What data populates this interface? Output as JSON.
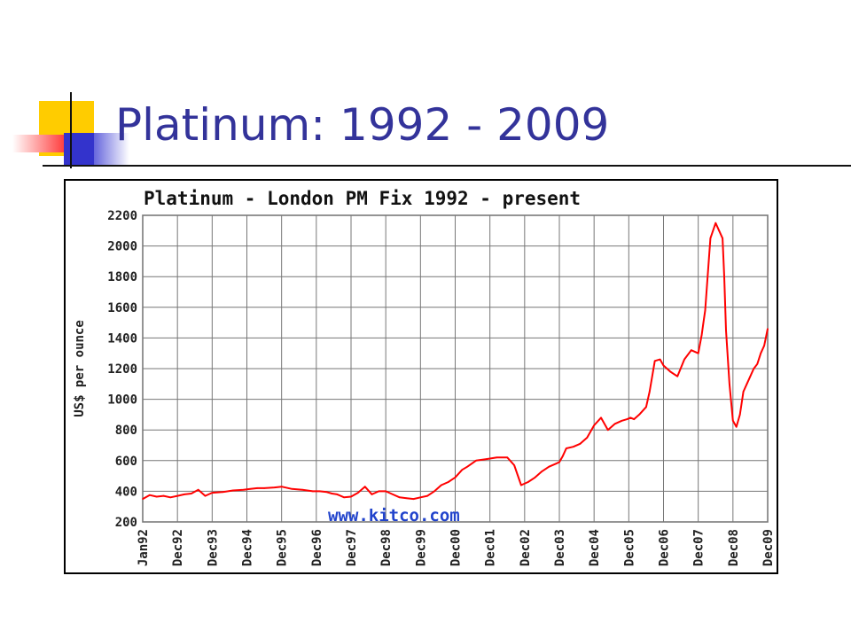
{
  "slide": {
    "title": "Platinum: 1992 - 2009"
  },
  "chart_data": {
    "type": "line",
    "title": "Platinum - London PM Fix 1992 - present",
    "ylabel": "US$ per ounce",
    "xlabel": "",
    "watermark": "www.kitco.com",
    "ylim": [
      200,
      2200
    ],
    "yticks": [
      200,
      400,
      600,
      800,
      1000,
      1200,
      1400,
      1600,
      1800,
      2000,
      2200
    ],
    "xlim": [
      1992.0,
      2010.0
    ],
    "xticks": [
      {
        "label": "Jan92",
        "x": 1992.0
      },
      {
        "label": "Dec92",
        "x": 1993.0
      },
      {
        "label": "Dec93",
        "x": 1994.0
      },
      {
        "label": "Dec94",
        "x": 1995.0
      },
      {
        "label": "Dec95",
        "x": 1996.0
      },
      {
        "label": "Dec96",
        "x": 1997.0
      },
      {
        "label": "Dec97",
        "x": 1998.0
      },
      {
        "label": "Dec98",
        "x": 1999.0
      },
      {
        "label": "Dec99",
        "x": 2000.0
      },
      {
        "label": "Dec00",
        "x": 2001.0
      },
      {
        "label": "Dec01",
        "x": 2002.0
      },
      {
        "label": "Dec02",
        "x": 2003.0
      },
      {
        "label": "Dec03",
        "x": 2004.0
      },
      {
        "label": "Dec04",
        "x": 2005.0
      },
      {
        "label": "Dec05",
        "x": 2006.0
      },
      {
        "label": "Dec06",
        "x": 2007.0
      },
      {
        "label": "Dec07",
        "x": 2008.0
      },
      {
        "label": "Dec08",
        "x": 2009.0
      },
      {
        "label": "Dec09",
        "x": 2010.0
      }
    ],
    "grid": true,
    "color": "#ff0000",
    "series": [
      {
        "name": "",
        "x": [
          1992.0,
          1992.2,
          1992.4,
          1992.6,
          1992.8,
          1993.0,
          1993.2,
          1993.4,
          1993.6,
          1993.8,
          1994.0,
          1994.3,
          1994.6,
          1994.9,
          1995.1,
          1995.3,
          1995.5,
          1995.8,
          1996.0,
          1996.3,
          1996.6,
          1996.9,
          1997.1,
          1997.3,
          1997.45,
          1997.6,
          1997.8,
          1998.0,
          1998.2,
          1998.4,
          1998.6,
          1998.8,
          1999.0,
          1999.2,
          1999.4,
          1999.6,
          1999.8,
          2000.0,
          2000.2,
          2000.4,
          2000.6,
          2000.8,
          2001.0,
          2001.2,
          2001.35,
          2001.6,
          2001.9,
          2002.2,
          2002.5,
          2002.7,
          2002.9,
          2003.1,
          2003.3,
          2003.5,
          2003.7,
          2003.9,
          2004.0,
          2004.1,
          2004.2,
          2004.4,
          2004.6,
          2004.8,
          2005.0,
          2005.2,
          2005.4,
          2005.6,
          2005.8,
          2005.95,
          2006.05,
          2006.15,
          2006.3,
          2006.5,
          2006.6,
          2006.75,
          2006.9,
          2007.0,
          2007.2,
          2007.4,
          2007.6,
          2007.8,
          2008.0,
          2008.1,
          2008.15,
          2008.2,
          2008.35,
          2008.5,
          2008.6,
          2008.7,
          2008.75,
          2008.8,
          2008.9,
          2009.0,
          2009.1,
          2009.2,
          2009.3,
          2009.4,
          2009.5,
          2009.6,
          2009.7,
          2009.8,
          2009.9,
          2010.0
        ],
        "values": [
          350,
          375,
          365,
          370,
          360,
          370,
          380,
          385,
          410,
          370,
          390,
          395,
          405,
          410,
          415,
          420,
          420,
          425,
          430,
          415,
          410,
          400,
          400,
          395,
          385,
          380,
          360,
          365,
          390,
          430,
          380,
          400,
          400,
          380,
          360,
          355,
          350,
          360,
          370,
          400,
          440,
          460,
          490,
          540,
          560,
          600,
          610,
          620,
          620,
          570,
          440,
          460,
          490,
          530,
          560,
          580,
          590,
          630,
          680,
          690,
          710,
          750,
          830,
          880,
          800,
          840,
          860,
          870,
          880,
          870,
          900,
          950,
          1050,
          1250,
          1260,
          1220,
          1180,
          1150,
          1260,
          1320,
          1300,
          1420,
          1500,
          1580,
          2050,
          2150,
          2100,
          2050,
          1800,
          1450,
          1100,
          860,
          820,
          900,
          1050,
          1100,
          1150,
          1200,
          1230,
          1300,
          1350,
          1460
        ]
      }
    ]
  }
}
